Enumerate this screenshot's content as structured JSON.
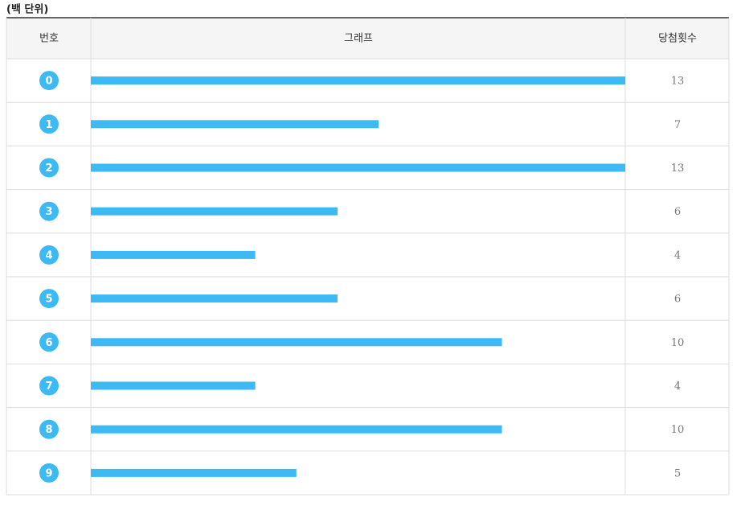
{
  "chart_data": {
    "type": "bar",
    "title": "(백 단위)",
    "columns": [
      "번호",
      "그래프",
      "당첨횟수"
    ],
    "categories": [
      "0",
      "1",
      "2",
      "3",
      "4",
      "5",
      "6",
      "7",
      "8",
      "9"
    ],
    "values": [
      13,
      7,
      13,
      6,
      4,
      6,
      10,
      4,
      10,
      5
    ],
    "color": "#3db9f4",
    "xlim": [
      0,
      13
    ]
  }
}
